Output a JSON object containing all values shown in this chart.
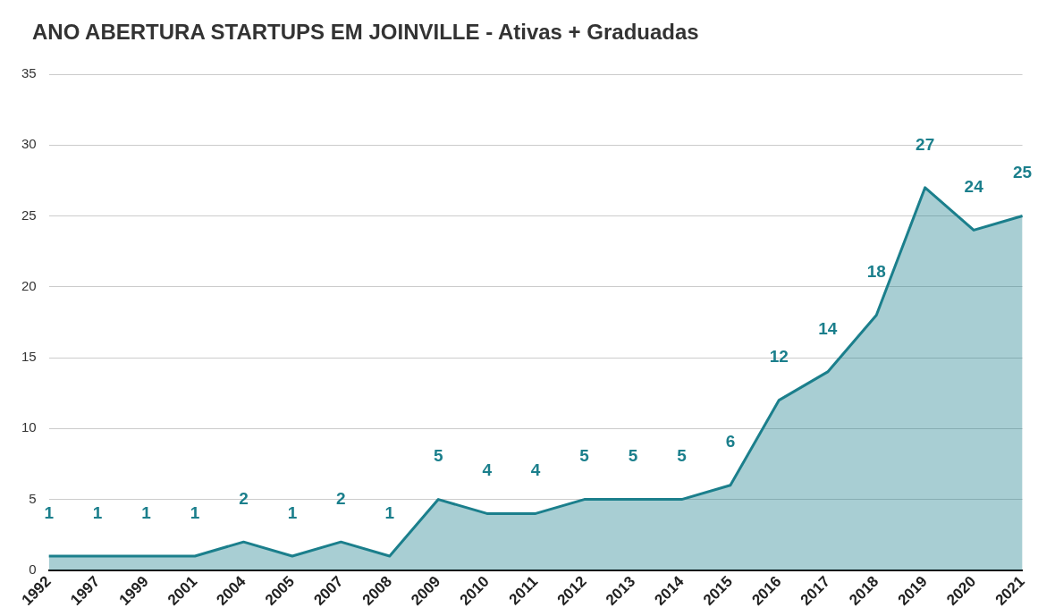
{
  "chart_data": {
    "type": "area",
    "title": "ANO ABERTURA STARTUPS EM JOINVILLE - Ativas + Graduadas",
    "categories": [
      "1992",
      "1997",
      "1999",
      "2001",
      "2004",
      "2005",
      "2007",
      "2008",
      "2009",
      "2010",
      "2011",
      "2012",
      "2013",
      "2014",
      "2015",
      "2016",
      "2017",
      "2018",
      "2019",
      "2020",
      "2021"
    ],
    "series": [
      {
        "color": "#1b7f8c",
        "values": [
          1,
          1,
          1,
          1,
          2,
          1,
          2,
          1,
          5,
          4,
          4,
          5,
          5,
          5,
          6,
          12,
          14,
          18,
          27,
          24,
          25
        ]
      }
    ],
    "ylim": [
      0,
      35
    ],
    "yticks": [
      0,
      5,
      10,
      15,
      20,
      25,
      30,
      35
    ],
    "grid": "y",
    "data_labels": true,
    "legend": false,
    "marker": "none"
  }
}
